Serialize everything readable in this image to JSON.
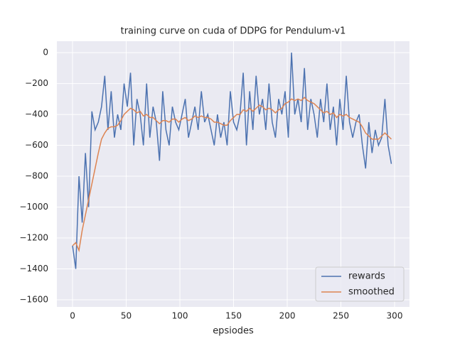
{
  "chart_data": {
    "type": "line",
    "title": "training curve on cuda of DDPG for Pendulum-v1",
    "xlabel": "epsiodes",
    "x": [
      0,
      3,
      6,
      9,
      12,
      15,
      18,
      21,
      24,
      27,
      30,
      33,
      36,
      39,
      42,
      45,
      48,
      51,
      54,
      57,
      60,
      63,
      66,
      69,
      72,
      75,
      78,
      81,
      84,
      87,
      90,
      93,
      96,
      99,
      102,
      105,
      108,
      111,
      114,
      117,
      120,
      123,
      126,
      129,
      132,
      135,
      138,
      141,
      144,
      147,
      150,
      153,
      156,
      159,
      162,
      165,
      168,
      171,
      174,
      177,
      180,
      183,
      186,
      189,
      192,
      195,
      198,
      201,
      204,
      207,
      210,
      213,
      216,
      219,
      222,
      225,
      228,
      231,
      234,
      237,
      240,
      243,
      246,
      249,
      252,
      255,
      258,
      261,
      264,
      267,
      270,
      273,
      276,
      279,
      282,
      285,
      288,
      291,
      294,
      297
    ],
    "series": [
      {
        "name": "rewards",
        "color": "#4c72b0",
        "values": [
          -1250,
          -1400,
          -800,
          -1100,
          -650,
          -1000,
          -380,
          -500,
          -450,
          -350,
          -150,
          -500,
          -250,
          -550,
          -400,
          -500,
          -200,
          -350,
          -130,
          -600,
          -300,
          -400,
          -600,
          -200,
          -550,
          -350,
          -450,
          -700,
          -250,
          -500,
          -600,
          -350,
          -450,
          -500,
          -400,
          -300,
          -550,
          -450,
          -350,
          -500,
          -250,
          -450,
          -400,
          -500,
          -600,
          -400,
          -550,
          -450,
          -600,
          -250,
          -450,
          -500,
          -400,
          -130,
          -600,
          -250,
          -500,
          -150,
          -400,
          -300,
          -500,
          -200,
          -450,
          -550,
          -300,
          -400,
          -250,
          -550,
          0,
          -400,
          -300,
          -450,
          -100,
          -500,
          -300,
          -400,
          -550,
          -300,
          -450,
          -200,
          -500,
          -350,
          -600,
          -300,
          -500,
          -150,
          -450,
          -550,
          -450,
          -400,
          -600,
          -750,
          -450,
          -650,
          -500,
          -600,
          -550,
          -300,
          -600,
          -720
        ]
      },
      {
        "name": "smoothed",
        "color": "#dd8452",
        "values": [
          -1250,
          -1230,
          -1280,
          -1150,
          -1050,
          -950,
          -850,
          -750,
          -650,
          -560,
          -520,
          -490,
          -480,
          -480,
          -470,
          -440,
          -400,
          -380,
          -360,
          -370,
          -390,
          -380,
          -410,
          -400,
          -420,
          -420,
          -440,
          -460,
          -440,
          -440,
          -450,
          -430,
          -430,
          -450,
          -430,
          -420,
          -440,
          -430,
          -410,
          -420,
          -410,
          -420,
          -420,
          -430,
          -450,
          -450,
          -460,
          -470,
          -470,
          -440,
          -420,
          -400,
          -400,
          -370,
          -380,
          -360,
          -380,
          -360,
          -340,
          -350,
          -370,
          -360,
          -370,
          -390,
          -370,
          -360,
          -330,
          -320,
          -300,
          -310,
          -300,
          -310,
          -290,
          -310,
          -320,
          -330,
          -350,
          -370,
          -390,
          -380,
          -400,
          -390,
          -420,
          -400,
          -410,
          -400,
          -420,
          -430,
          -440,
          -450,
          -480,
          -520,
          -540,
          -560,
          -560,
          -560,
          -540,
          -520,
          -540,
          -560
        ]
      }
    ],
    "xlim": [
      -14.6,
      313.9
    ],
    "ylim": [
      -1646,
      74
    ],
    "xticks": [
      0,
      50,
      100,
      150,
      200,
      250,
      300
    ],
    "yticks": [
      {
        "value": -1600,
        "label": "−1600"
      },
      {
        "value": -1400,
        "label": "−1400"
      },
      {
        "value": -1200,
        "label": "−1200"
      },
      {
        "value": -1000,
        "label": "−1000"
      },
      {
        "value": -800,
        "label": "−800"
      },
      {
        "value": -600,
        "label": "−600"
      },
      {
        "value": -400,
        "label": "−400"
      },
      {
        "value": -200,
        "label": "−200"
      },
      0
    ],
    "grid": true,
    "legend": "lower right",
    "background": "#eaeaf2"
  }
}
